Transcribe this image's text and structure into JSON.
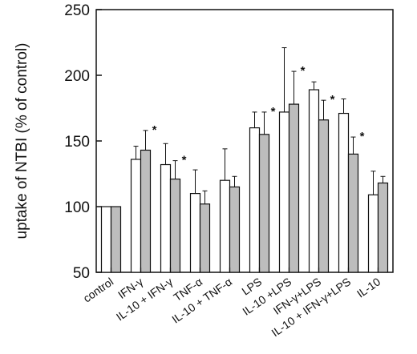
{
  "chart_data": {
    "type": "bar",
    "ylabel": "uptake of NTBI (% of control)",
    "xlabel": "",
    "title": "",
    "ylim": [
      50,
      250
    ],
    "yticks": [
      50,
      100,
      150,
      200,
      250
    ],
    "grid": false,
    "legend": "none",
    "categories": [
      "control",
      "IFN-γ",
      "IL-10 + IFN-γ",
      "TNF-α",
      "IL-10 + TNF-α",
      "LPS",
      "IL-10 +LPS",
      "IFN-γ+LPS",
      "IL-10 + IFN-γ+LPS",
      "IL-10"
    ],
    "series": [
      {
        "fill": "#ffffff",
        "values": [
          100,
          136,
          132,
          110,
          120,
          160,
          172,
          189,
          171,
          109
        ],
        "errors": [
          0,
          10,
          16,
          18,
          24,
          12,
          49,
          6,
          11,
          18
        ]
      },
      {
        "fill": "#bdbdbd",
        "values": [
          100,
          143,
          121,
          102,
          115,
          155,
          178,
          166,
          140,
          118
        ],
        "errors": [
          0,
          15,
          14,
          10,
          8,
          17,
          25,
          15,
          13,
          5
        ]
      }
    ],
    "significance": [
      "",
      "*",
      "*",
      "",
      "",
      "*",
      "*",
      "*",
      "*",
      ""
    ],
    "significance_marker": "*"
  }
}
